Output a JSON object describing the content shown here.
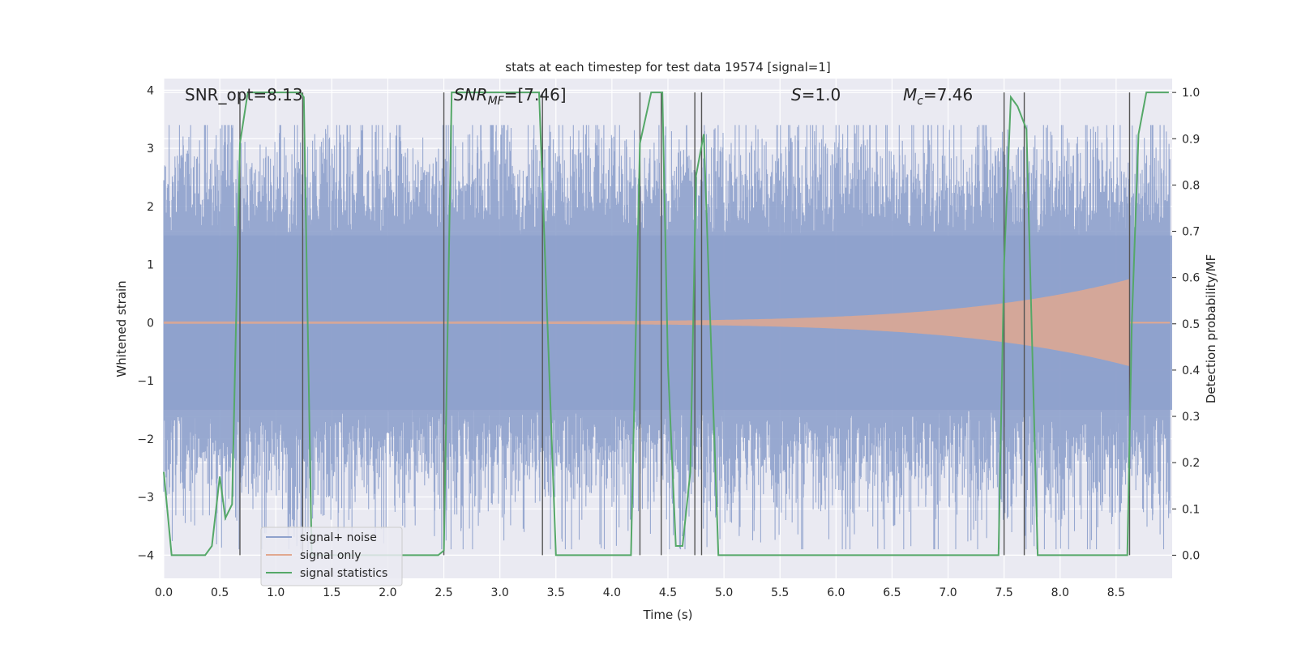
{
  "chart_data": {
    "type": "line",
    "title": "stats at each timestep for test data 19574 [signal=1]",
    "xlabel": "Time (s)",
    "ylabel_left": "Whitened strain",
    "ylabel_right": "Detection probability/MF",
    "xlim": [
      0.0,
      9.0
    ],
    "ylim_left": [
      -4.4,
      4.2
    ],
    "ylim_right": [
      -0.05,
      1.03
    ],
    "x_ticks": [
      "0.0",
      "0.5",
      "1.0",
      "1.5",
      "2.0",
      "2.5",
      "3.0",
      "3.5",
      "4.0",
      "4.5",
      "5.0",
      "5.5",
      "6.0",
      "6.5",
      "7.0",
      "7.5",
      "8.0",
      "8.5"
    ],
    "y_left_ticks": [
      "4",
      "3",
      "2",
      "1",
      "0",
      "−1",
      "−2",
      "−3",
      "−4"
    ],
    "y_right_ticks": [
      "1.0",
      "0.9",
      "0.8",
      "0.7",
      "0.6",
      "0.5",
      "0.4",
      "0.3",
      "0.2",
      "0.1",
      "0.0"
    ],
    "grid": true,
    "legend_position": "lower-left",
    "annotations": {
      "snr_opt": "SNR_opt=8.13",
      "snr_mf_main": "SNR",
      "snr_mf_sub": "MF",
      "snr_mf_value": "=[7.46]",
      "s_symbol": "S",
      "s_value": "=1.0",
      "mc_symbol": "M",
      "mc_sub": "c",
      "mc_value": "=7.46"
    },
    "series": [
      {
        "name": "signal+ noise",
        "color": "#8ea1cc",
        "axis": "left",
        "description_values": {
          "noise_amplitude_typical": 1.5,
          "peak_range": [
            -3.9,
            3.4
          ]
        }
      },
      {
        "name": "signal only",
        "color": "#e1a88f",
        "axis": "left",
        "chirp": {
          "t_start": 0.0,
          "t_merge": 8.62,
          "amp_start": 0.02,
          "amp_merge": 0.75
        }
      },
      {
        "name": "signal statistics",
        "color": "#55a868",
        "axis": "right",
        "x": [
          0.0,
          0.07,
          0.12,
          0.37,
          0.43,
          0.5,
          0.55,
          0.61,
          0.68,
          0.75,
          1.22,
          1.25,
          1.32,
          1.4,
          2.45,
          2.5,
          2.57,
          3.35,
          3.5,
          3.6,
          4.17,
          4.25,
          4.35,
          4.45,
          4.5,
          4.57,
          4.63,
          4.7,
          4.75,
          4.82,
          4.95,
          7.45,
          7.5,
          7.56,
          7.62,
          7.7,
          7.8,
          7.95,
          8.6,
          8.64,
          8.7,
          8.77,
          8.97
        ],
        "values": [
          0.18,
          0.0,
          0.0,
          0.0,
          0.02,
          0.17,
          0.08,
          0.11,
          0.89,
          1.0,
          1.0,
          0.99,
          0.0,
          0.0,
          0.0,
          0.01,
          1.0,
          1.0,
          0.0,
          0.0,
          0.0,
          0.89,
          1.0,
          1.0,
          0.41,
          0.02,
          0.02,
          0.18,
          0.82,
          0.91,
          0.0,
          0.0,
          0.63,
          0.99,
          0.97,
          0.92,
          0.0,
          0.0,
          0.0,
          0.5,
          0.91,
          1.0,
          1.0
        ]
      }
    ],
    "vertical_markers": [
      0.68,
      1.24,
      2.5,
      3.38,
      4.25,
      4.44,
      4.74,
      4.8,
      7.5,
      7.68,
      8.62
    ]
  }
}
